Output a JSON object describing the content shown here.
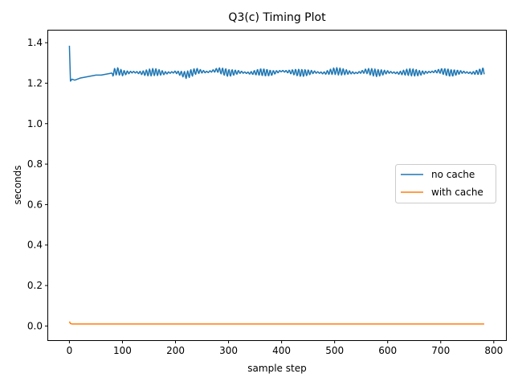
{
  "chart_data": {
    "type": "line",
    "title": "Q3(c) Timing Plot",
    "xlabel": "sample step",
    "ylabel": "seconds",
    "xlim": [
      -40,
      823
    ],
    "ylim": [
      -0.07,
      1.46
    ],
    "xticks": [
      0,
      100,
      200,
      300,
      400,
      500,
      600,
      700,
      800
    ],
    "yticks": [
      0.0,
      0.2,
      0.4,
      0.6,
      0.8,
      1.0,
      1.2,
      1.4
    ],
    "ytick_labels": [
      "0.0",
      "0.2",
      "0.4",
      "0.6",
      "0.8",
      "1.0",
      "1.2",
      "1.4"
    ],
    "grid": false,
    "legend_position": "center-right",
    "series": [
      {
        "name": "no cache",
        "color": "#1f77b4",
        "x": [
          0,
          2,
          5,
          10,
          20,
          30,
          40,
          50,
          60,
          70,
          80,
          90,
          100,
          120,
          140,
          160,
          180,
          200,
          220,
          240,
          260,
          280,
          300,
          320,
          340,
          360,
          380,
          400,
          420,
          440,
          460,
          480,
          500,
          520,
          540,
          560,
          580,
          600,
          620,
          640,
          660,
          680,
          700,
          720,
          740,
          760,
          782
        ],
        "y": [
          1.385,
          1.21,
          1.22,
          1.215,
          1.225,
          1.23,
          1.235,
          1.24,
          1.24,
          1.245,
          1.25,
          1.26,
          1.25,
          1.255,
          1.25,
          1.255,
          1.25,
          1.255,
          1.24,
          1.26,
          1.255,
          1.265,
          1.25,
          1.255,
          1.25,
          1.255,
          1.25,
          1.26,
          1.255,
          1.25,
          1.255,
          1.25,
          1.26,
          1.255,
          1.25,
          1.26,
          1.25,
          1.255,
          1.25,
          1.255,
          1.25,
          1.255,
          1.26,
          1.25,
          1.255,
          1.25,
          1.26
        ],
        "oscillation_amplitude": 0.018
      },
      {
        "name": "with cache",
        "color": "#ff7f0e",
        "x": [
          0,
          2,
          5,
          100,
          200,
          300,
          400,
          500,
          600,
          700,
          782
        ],
        "y": [
          0.022,
          0.012,
          0.01,
          0.01,
          0.01,
          0.01,
          0.01,
          0.01,
          0.01,
          0.01,
          0.01
        ]
      }
    ]
  }
}
